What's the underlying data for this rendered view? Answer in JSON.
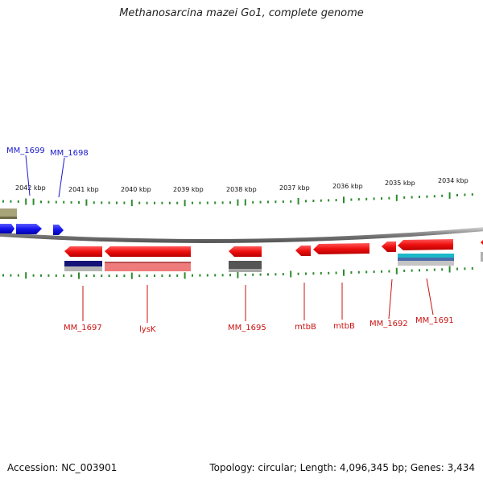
{
  "title": "Methanosarcina mazei Go1, complete genome",
  "footer": {
    "accession": "Accession: NC_003901",
    "summary": "Topology: circular; Length: 4,096,345 bp; Genes: 3,434"
  },
  "colors": {
    "backbone": "#8a8a8a",
    "tick": "#2e8b2e",
    "forward_gene": "#1a1aee",
    "reverse_gene": "#ee1111",
    "forward_label": "#1a1acc",
    "reverse_label": "#cc1111"
  },
  "scale_labels": [
    "2042 kbp",
    "2041 kbp",
    "2040 kbp",
    "2039 kbp",
    "2038 kbp",
    "2037 kbp",
    "2036 kbp",
    "2035 kbp",
    "2034 kbp"
  ],
  "gene_labels": {
    "forward": [
      "MM_1699",
      "MM_1698"
    ],
    "reverse": [
      "MM_1697",
      "lysK",
      "MM_1695",
      "mtbB",
      "mtbB",
      "MM_1692",
      "MM_1691"
    ]
  }
}
